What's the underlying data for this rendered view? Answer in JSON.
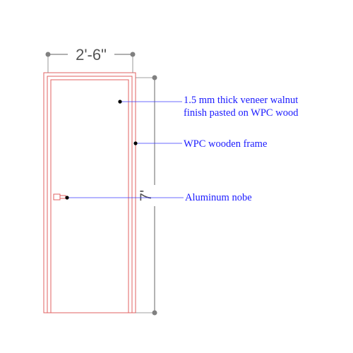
{
  "drawing": {
    "dimensions": {
      "width_label": "2'-6\"",
      "height_label": "7'"
    },
    "callouts": [
      {
        "id": "veneer",
        "lines": [
          "1.5 mm thick veneer walnut",
          "finish pasted on WPC wood"
        ]
      },
      {
        "id": "frame",
        "lines": [
          "WPC wooden frame"
        ]
      },
      {
        "id": "handle",
        "lines": [
          "Aluminum nobe"
        ]
      }
    ],
    "colors": {
      "door_outline": "#e06060",
      "dimension": "#808080",
      "callout_line": "#3a3aff",
      "callout_text": "#1a1aff",
      "leader_dot": "#000000"
    }
  }
}
